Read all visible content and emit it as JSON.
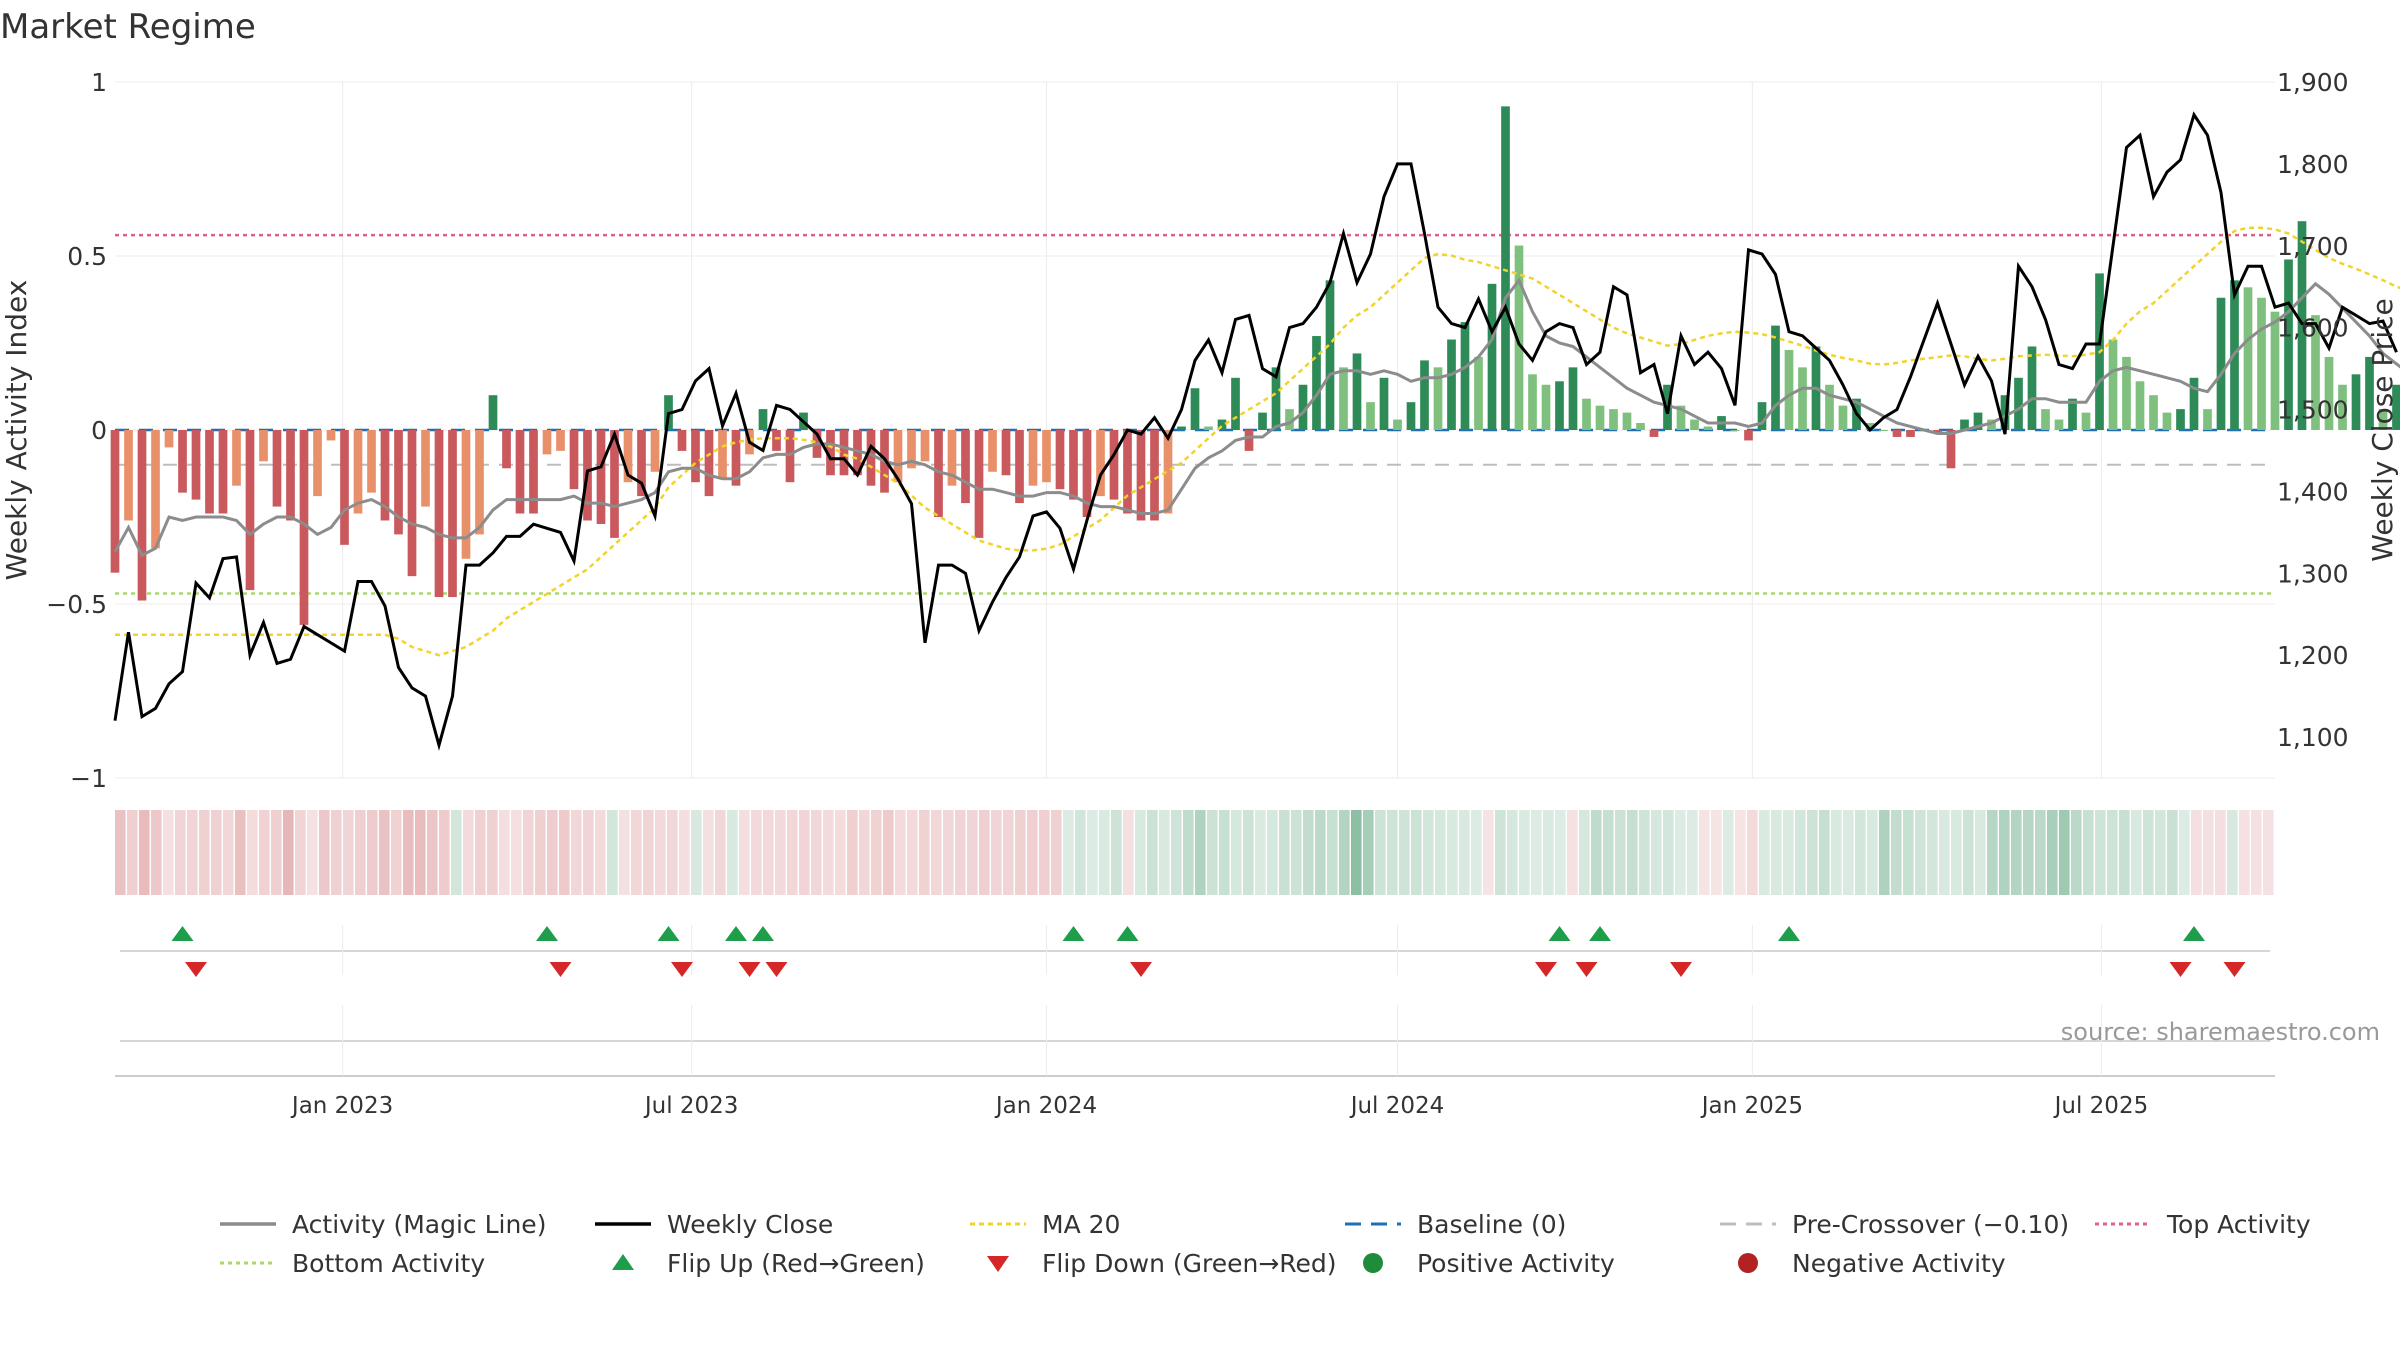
{
  "title": "Market Regime",
  "source": "source: sharemaestro.com",
  "colors": {
    "pos_strong": "#2e8b57",
    "pos_light": "#7fc07f",
    "neg_strong": "#c9595d",
    "neg_light": "#e8906a",
    "weekly_close": "#000000",
    "magic_line": "#8c8c8c",
    "ma20": "#f2d32a",
    "baseline": "#1f6fb4",
    "pre_crossover": "#bdbdbd",
    "top": "#e0608a",
    "bottom": "#a9d86a"
  },
  "chart_data": {
    "type": "bar",
    "title": "Market Regime",
    "left_axis": {
      "label": "Weekly Activity Index",
      "range": [
        -1,
        1
      ],
      "ticks": [
        1,
        0.5,
        0,
        -0.5,
        -1
      ],
      "tick_labels": [
        "1",
        "0.5",
        "0",
        "−0.5",
        "−1"
      ]
    },
    "right_axis": {
      "label": "Weekly Close Price",
      "range": [
        1050,
        1900
      ],
      "ticks": [
        1900,
        1800,
        1700,
        1600,
        1500,
        1400,
        1300,
        1200,
        1100
      ],
      "tick_labels": [
        "1,900",
        "1,800",
        "1,700",
        "1,600",
        "1,500",
        "1,400",
        "1,300",
        "1,200",
        "1,100"
      ]
    },
    "x_axis": {
      "start": "2022-09-05",
      "end": "2025-09-29",
      "ticks": [
        "2023-01-01",
        "2023-07-01",
        "2024-01-01",
        "2024-07-01",
        "2025-01-01",
        "2025-07-01"
      ],
      "tick_labels": [
        "Jan 2023",
        "Jul 2023",
        "Jan 2024",
        "Jul 2024",
        "Jan 2025",
        "Jul 2025"
      ]
    },
    "levels": {
      "top_activity": 0.56,
      "bottom_activity": -0.47,
      "pre_crossover": -0.1,
      "baseline": 0
    },
    "activity": [
      -0.41,
      -0.26,
      -0.49,
      -0.34,
      -0.05,
      -0.18,
      -0.2,
      -0.24,
      -0.24,
      -0.16,
      -0.46,
      -0.09,
      -0.22,
      -0.26,
      -0.56,
      -0.19,
      -0.03,
      -0.33,
      -0.24,
      -0.18,
      -0.26,
      -0.3,
      -0.42,
      -0.22,
      -0.48,
      -0.48,
      -0.37,
      -0.3,
      0.1,
      -0.11,
      -0.24,
      -0.24,
      -0.07,
      -0.06,
      -0.17,
      -0.26,
      -0.27,
      -0.31,
      -0.15,
      -0.19,
      -0.12,
      0.1,
      -0.06,
      -0.15,
      -0.19,
      -0.14,
      -0.16,
      -0.07,
      0.06,
      -0.06,
      -0.15,
      0.05,
      -0.08,
      -0.13,
      -0.13,
      -0.13,
      -0.16,
      -0.18,
      -0.15,
      -0.11,
      -0.09,
      -0.25,
      -0.16,
      -0.21,
      -0.31,
      -0.12,
      -0.13,
      -0.21,
      -0.16,
      -0.15,
      -0.17,
      -0.2,
      -0.25,
      -0.19,
      -0.2,
      -0.24,
      -0.26,
      -0.26,
      -0.24,
      0.01,
      0.12,
      0.01,
      0.03,
      0.15,
      -0.06,
      0.05,
      0.18,
      0.06,
      0.13,
      0.27,
      0.43,
      0.18,
      0.22,
      0.08,
      0.15,
      0.03,
      0.08,
      0.2,
      0.18,
      0.26,
      0.31,
      0.21,
      0.42,
      0.93,
      0.53,
      0.16,
      0.13,
      0.14,
      0.18,
      0.09,
      0.07,
      0.06,
      0.05,
      0.02,
      -0.02,
      0.13,
      0.07,
      0.03,
      0.01,
      0.04,
      0.0,
      -0.03,
      0.08,
      0.3,
      0.23,
      0.18,
      0.24,
      0.13,
      0.07,
      0.09,
      0.02,
      0.0,
      -0.02,
      -0.02,
      0.0,
      -0.01,
      -0.11,
      0.03,
      0.05,
      0.03,
      0.1,
      0.15,
      0.24,
      0.06,
      0.03,
      0.09,
      0.05,
      0.45,
      0.26,
      0.21,
      0.14,
      0.1,
      0.05,
      0.06,
      0.15,
      0.06,
      0.38,
      0.43,
      0.41,
      0.38,
      0.34,
      0.49,
      0.6,
      0.33,
      0.21,
      0.13,
      0.16,
      0.21,
      0.06,
      0.13,
      0.09,
      0.2,
      0.01,
      -0.06,
      -0.05,
      -0.08,
      0.06,
      -0.04,
      -0.03,
      -0.04
    ],
    "magic_line": [
      -0.35,
      -0.28,
      -0.36,
      -0.34,
      -0.25,
      -0.26,
      -0.25,
      -0.25,
      -0.25,
      -0.26,
      -0.3,
      -0.27,
      -0.25,
      -0.25,
      -0.27,
      -0.3,
      -0.28,
      -0.23,
      -0.21,
      -0.2,
      -0.22,
      -0.25,
      -0.27,
      -0.28,
      -0.3,
      -0.31,
      -0.31,
      -0.28,
      -0.23,
      -0.2,
      -0.2,
      -0.2,
      -0.2,
      -0.2,
      -0.19,
      -0.21,
      -0.21,
      -0.22,
      -0.21,
      -0.2,
      -0.18,
      -0.12,
      -0.11,
      -0.11,
      -0.13,
      -0.14,
      -0.14,
      -0.12,
      -0.08,
      -0.07,
      -0.07,
      -0.05,
      -0.04,
      -0.04,
      -0.05,
      -0.06,
      -0.07,
      -0.09,
      -0.1,
      -0.09,
      -0.1,
      -0.12,
      -0.13,
      -0.15,
      -0.17,
      -0.17,
      -0.18,
      -0.19,
      -0.19,
      -0.18,
      -0.18,
      -0.19,
      -0.21,
      -0.22,
      -0.22,
      -0.23,
      -0.24,
      -0.24,
      -0.23,
      -0.17,
      -0.11,
      -0.08,
      -0.06,
      -0.03,
      -0.02,
      -0.02,
      0.01,
      0.02,
      0.05,
      0.1,
      0.16,
      0.17,
      0.17,
      0.16,
      0.17,
      0.16,
      0.14,
      0.15,
      0.15,
      0.16,
      0.18,
      0.21,
      0.26,
      0.38,
      0.43,
      0.34,
      0.27,
      0.25,
      0.24,
      0.21,
      0.18,
      0.15,
      0.12,
      0.1,
      0.08,
      0.07,
      0.06,
      0.04,
      0.02,
      0.02,
      0.02,
      0.01,
      0.02,
      0.07,
      0.1,
      0.12,
      0.12,
      0.1,
      0.09,
      0.08,
      0.06,
      0.04,
      0.02,
      0.01,
      0.0,
      -0.01,
      -0.01,
      0.0,
      0.01,
      0.02,
      0.04,
      0.06,
      0.09,
      0.09,
      0.08,
      0.08,
      0.08,
      0.14,
      0.17,
      0.18,
      0.17,
      0.16,
      0.15,
      0.14,
      0.12,
      0.11,
      0.16,
      0.22,
      0.26,
      0.29,
      0.31,
      0.34,
      0.38,
      0.42,
      0.39,
      0.35,
      0.31,
      0.27,
      0.22,
      0.19,
      0.16,
      0.14,
      0.11,
      0.07,
      0.07,
      0.06,
      0.06,
      0.04,
      0.03,
      0.02
    ],
    "weekly_close": [
      1120,
      1228,
      1125,
      1135,
      1165,
      1180,
      1288,
      1270,
      1318,
      1320,
      1200,
      1240,
      1190,
      1195,
      1235,
      1225,
      1215,
      1205,
      1290,
      1290,
      1260,
      1185,
      1160,
      1150,
      1090,
      1150,
      1310,
      1310,
      1325,
      1345,
      1345,
      1360,
      1355,
      1350,
      1315,
      1425,
      1430,
      1470,
      1420,
      1410,
      1370,
      1495,
      1500,
      1535,
      1550,
      1480,
      1520,
      1460,
      1450,
      1505,
      1500,
      1485,
      1470,
      1440,
      1440,
      1420,
      1455,
      1440,
      1415,
      1385,
      1215,
      1310,
      1310,
      1300,
      1230,
      1265,
      1295,
      1320,
      1370,
      1375,
      1355,
      1305,
      1365,
      1420,
      1445,
      1475,
      1470,
      1490,
      1465,
      1500,
      1560,
      1585,
      1545,
      1610,
      1615,
      1550,
      1540,
      1600,
      1605,
      1625,
      1655,
      1715,
      1655,
      1690,
      1760,
      1800,
      1800,
      1715,
      1625,
      1605,
      1600,
      1635,
      1595,
      1625,
      1580,
      1560,
      1595,
      1605,
      1600,
      1555,
      1570,
      1650,
      1640,
      1545,
      1555,
      1495,
      1590,
      1555,
      1570,
      1550,
      1505,
      1695,
      1690,
      1665,
      1595,
      1590,
      1575,
      1560,
      1530,
      1495,
      1475,
      1490,
      1500,
      1540,
      1585,
      1630,
      1580,
      1530,
      1565,
      1535,
      1470,
      1675,
      1650,
      1610,
      1555,
      1550,
      1580,
      1580,
      1700,
      1820,
      1835,
      1760,
      1790,
      1805,
      1860,
      1835,
      1765,
      1640,
      1675,
      1675,
      1625,
      1630,
      1605,
      1605,
      1575,
      1625,
      1615,
      1605,
      1608,
      1570
    ],
    "ma20": [
      1225,
      1225,
      1225,
      1225,
      1225,
      1225,
      1225,
      1225,
      1225,
      1225,
      1225,
      1225,
      1225,
      1225,
      1225,
      1225,
      1225,
      1225,
      1225,
      1225,
      1225,
      1220,
      1210,
      1205,
      1200,
      1205,
      1210,
      1220,
      1230,
      1245,
      1255,
      1265,
      1275,
      1285,
      1295,
      1305,
      1320,
      1335,
      1350,
      1365,
      1380,
      1405,
      1420,
      1435,
      1445,
      1455,
      1460,
      1463,
      1465,
      1465,
      1465,
      1463,
      1460,
      1455,
      1445,
      1440,
      1430,
      1420,
      1410,
      1395,
      1380,
      1370,
      1360,
      1350,
      1340,
      1335,
      1330,
      1328,
      1328,
      1330,
      1335,
      1345,
      1355,
      1365,
      1380,
      1395,
      1405,
      1415,
      1425,
      1435,
      1450,
      1465,
      1480,
      1490,
      1500,
      1510,
      1520,
      1535,
      1550,
      1565,
      1580,
      1600,
      1615,
      1625,
      1640,
      1655,
      1670,
      1685,
      1690,
      1688,
      1683,
      1680,
      1675,
      1670,
      1665,
      1660,
      1650,
      1640,
      1630,
      1620,
      1610,
      1600,
      1593,
      1588,
      1583,
      1578,
      1580,
      1585,
      1590,
      1593,
      1595,
      1594,
      1592,
      1588,
      1583,
      1578,
      1572,
      1567,
      1563,
      1560,
      1556,
      1555,
      1557,
      1560,
      1562,
      1564,
      1566,
      1565,
      1562,
      1560,
      1562,
      1565,
      1566,
      1567,
      1566,
      1565,
      1567,
      1570,
      1585,
      1605,
      1620,
      1630,
      1645,
      1660,
      1675,
      1690,
      1705,
      1718,
      1722,
      1722,
      1720,
      1715,
      1705,
      1695,
      1685,
      1678,
      1672,
      1665,
      1658,
      1650,
      1645,
      1635
    ],
    "regime_intensity": [
      -0.41,
      -0.26,
      -0.49,
      -0.34,
      -0.05,
      -0.18,
      -0.2,
      -0.24,
      -0.24,
      -0.16,
      -0.46,
      -0.09,
      -0.22,
      -0.26,
      -0.56,
      -0.19,
      -0.03,
      -0.33,
      -0.24,
      -0.18,
      -0.26,
      -0.3,
      -0.42,
      -0.22,
      -0.48,
      -0.48,
      -0.37,
      -0.3,
      0.1,
      -0.11,
      -0.24,
      -0.24,
      -0.07,
      -0.06,
      -0.17,
      -0.26,
      -0.27,
      -0.31,
      -0.15,
      -0.19,
      -0.12,
      0.1,
      -0.06,
      -0.15,
      -0.19,
      -0.14,
      -0.16,
      -0.07,
      0.06,
      -0.06,
      -0.15,
      0.05,
      -0.08,
      -0.13,
      -0.13,
      -0.13,
      -0.16,
      -0.18,
      -0.15,
      -0.11,
      -0.09,
      -0.25,
      -0.16,
      -0.21,
      -0.31,
      -0.12,
      -0.13,
      -0.21,
      -0.16,
      -0.15,
      -0.17,
      -0.2,
      -0.25,
      -0.19,
      -0.2,
      -0.24,
      -0.26,
      -0.26,
      -0.24,
      0.01,
      0.12,
      0.01,
      0.03,
      0.15,
      -0.06,
      0.05,
      0.18,
      0.06,
      0.13,
      0.27,
      0.43,
      0.18,
      0.22,
      0.08,
      0.15,
      0.03,
      0.08,
      0.2,
      0.18,
      0.26,
      0.31,
      0.21,
      0.42,
      0.93,
      0.53,
      0.16,
      0.13,
      0.14,
      0.18,
      0.09,
      0.07,
      0.06,
      0.05,
      0.02,
      -0.02,
      0.13,
      0.07,
      0.03,
      0.01,
      0.04,
      0.0,
      -0.03,
      0.08,
      0.3,
      0.23,
      0.18,
      0.24,
      0.13,
      0.07,
      0.09,
      0.02,
      0.0,
      -0.02,
      -0.02,
      0.0,
      -0.01,
      -0.11,
      0.03,
      0.05,
      0.03,
      0.1,
      0.15,
      0.24,
      0.06,
      0.03,
      0.09,
      0.05,
      0.45,
      0.26,
      0.21,
      0.14,
      0.1,
      0.05,
      0.06,
      0.15,
      0.06,
      0.38,
      0.43,
      0.41,
      0.38,
      0.34,
      0.49,
      0.6,
      0.33,
      0.21,
      0.13,
      0.16,
      0.21,
      0.06,
      0.13,
      0.09,
      0.2,
      0.01,
      -0.06,
      -0.05,
      -0.08,
      0.06,
      -0.04,
      -0.03,
      -0.04
    ],
    "flip_up_dates": [
      "2022-10-10",
      "2023-04-17",
      "2023-06-19",
      "2023-07-24",
      "2023-08-07",
      "2024-01-15",
      "2024-02-12",
      "2024-09-23",
      "2024-10-14",
      "2025-01-20",
      "2025-08-18"
    ],
    "flip_down_dates": [
      "2022-10-17",
      "2023-04-24",
      "2023-06-26",
      "2023-07-31",
      "2023-08-14",
      "2024-02-19",
      "2024-09-16",
      "2024-10-07",
      "2024-11-25",
      "2025-08-11",
      "2025-09-08"
    ],
    "legend": [
      {
        "key": "magic",
        "label": "Activity (Magic Line)"
      },
      {
        "key": "close",
        "label": "Weekly Close"
      },
      {
        "key": "ma20",
        "label": "MA 20"
      },
      {
        "key": "baseline",
        "label": "Baseline (0)"
      },
      {
        "key": "precross",
        "label": "Pre-Crossover (−0.10)"
      },
      {
        "key": "top",
        "label": "Top Activity"
      },
      {
        "key": "bottom",
        "label": "Bottom Activity"
      },
      {
        "key": "flipup",
        "label": "Flip Up (Red→Green)"
      },
      {
        "key": "flipdown",
        "label": "Flip Down (Green→Red)"
      },
      {
        "key": "posact",
        "label": "Positive Activity"
      },
      {
        "key": "negact",
        "label": "Negative Activity"
      }
    ],
    "legend_placement": "bottom",
    "grid": true
  }
}
